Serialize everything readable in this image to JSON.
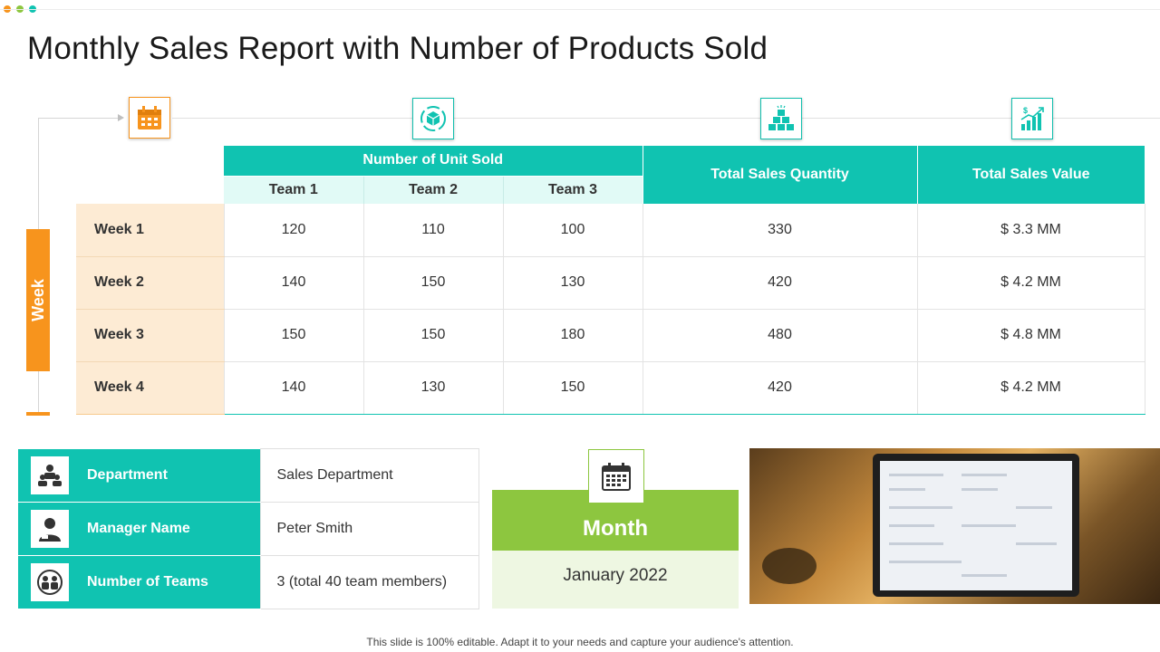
{
  "title": "Monthly Sales Report with Number of Products Sold",
  "colors": {
    "accent_teal": "#10c3b1",
    "accent_orange": "#f7941d",
    "accent_green": "#8dc63f"
  },
  "axis_label": "Week",
  "icons": [
    "calendar-icon",
    "box-cycle-icon",
    "stacked-boxes-icon",
    "sales-growth-icon"
  ],
  "table": {
    "group_header": "Number of Unit Sold",
    "team_headers": [
      "Team 1",
      "Team 2",
      "Team 3"
    ],
    "quantity_header": "Total Sales Quantity",
    "value_header": "Total Sales Value",
    "rows": [
      {
        "week": "Week 1",
        "teams": [
          "120",
          "110",
          "100"
        ],
        "quantity": "330",
        "value": "$ 3.3 MM"
      },
      {
        "week": "Week 2",
        "teams": [
          "140",
          "150",
          "130"
        ],
        "quantity": "420",
        "value": "$ 4.2 MM"
      },
      {
        "week": "Week 3",
        "teams": [
          "150",
          "150",
          "180"
        ],
        "quantity": "480",
        "value": "$ 4.8 MM"
      },
      {
        "week": "Week 4",
        "teams": [
          "140",
          "130",
          "150"
        ],
        "quantity": "420",
        "value": "$ 4.2 MM"
      }
    ]
  },
  "info": [
    {
      "label": "Department",
      "value": "Sales Department",
      "icon": "department-icon"
    },
    {
      "label": "Manager Name",
      "value": "Peter Smith",
      "icon": "manager-icon"
    },
    {
      "label": "Number of Teams",
      "value": "3 (total 40 team members)",
      "icon": "teams-icon"
    }
  ],
  "month": {
    "label": "Month",
    "value": "January 2022",
    "icon": "calendar-icon"
  },
  "footer": "This slide is 100% editable. Adapt it to your needs and capture your audience's attention."
}
